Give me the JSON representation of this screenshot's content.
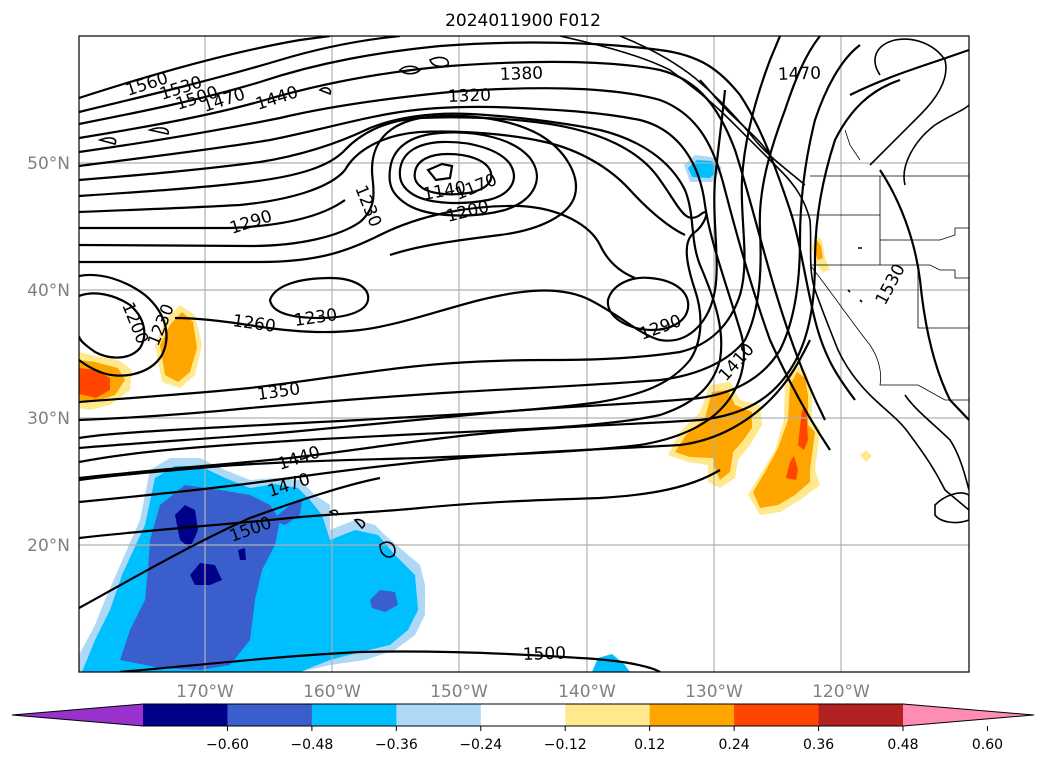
{
  "title": "2024011900 F012",
  "map": {
    "lon_ticks": [
      {
        "value": -170,
        "label": "170°W"
      },
      {
        "value": -160,
        "label": "160°W"
      },
      {
        "value": -150,
        "label": "150°W"
      },
      {
        "value": -140,
        "label": "140°W"
      },
      {
        "value": -130,
        "label": "130°W"
      },
      {
        "value": -120,
        "label": "120°W"
      }
    ],
    "lat_ticks": [
      {
        "value": 20,
        "label": "20°N"
      },
      {
        "value": 30,
        "label": "30°N"
      },
      {
        "value": 40,
        "label": "40°N"
      },
      {
        "value": 50,
        "label": "50°N"
      }
    ],
    "contour_labels": [
      "1560",
      "1530",
      "1500",
      "1470",
      "1440",
      "1380",
      "1320",
      "1470",
      "1230",
      "1140",
      "1170",
      "1200",
      "1290",
      "1200",
      "1230",
      "1260",
      "1230",
      "1290",
      "1530",
      "1350",
      "1410",
      "1440",
      "1470",
      "1500",
      "1500"
    ]
  },
  "colorbar": {
    "ticks": [
      "−0.60",
      "−0.48",
      "−0.36",
      "−0.24",
      "−0.12",
      "0.12",
      "0.24",
      "0.36",
      "0.48",
      "0.60"
    ],
    "colors": [
      "#9932cc",
      "#00008b",
      "#3a5fcd",
      "#00bfff",
      "#add8f6",
      "#ffffff",
      "#ffe98c",
      "#ffa500",
      "#ff4500",
      "#b22222",
      "#ff8cb4"
    ]
  }
}
